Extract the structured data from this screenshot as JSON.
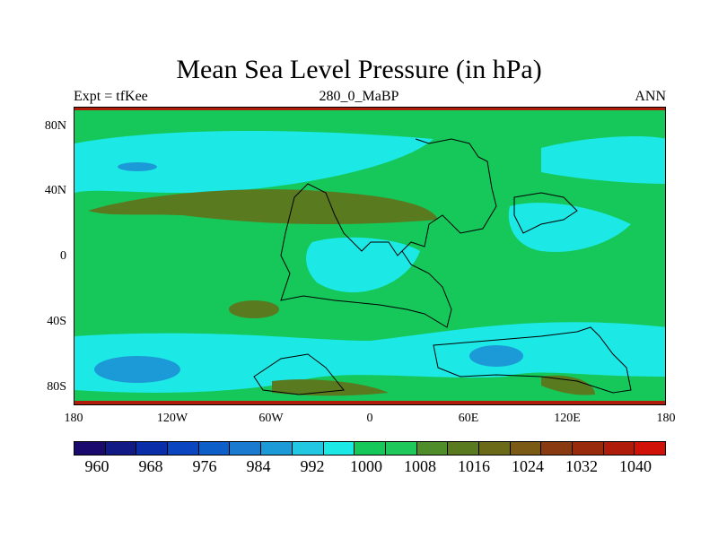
{
  "title": "Mean Sea Level Pressure (in hPa)",
  "left_label": "Expt = tfKee",
  "center_label": "280_0_MaBP",
  "right_label": "ANN",
  "y_ticks": [
    "80N",
    "40N",
    "0",
    "40S",
    "80S"
  ],
  "x_ticks": [
    "180",
    "120W",
    "60W",
    "0",
    "60E",
    "120E",
    "180"
  ],
  "colorbar": {
    "colors": [
      "#1b0a6e",
      "#121a86",
      "#0a2ea8",
      "#0b45c0",
      "#0f5fc8",
      "#1a7ad0",
      "#1c9ad8",
      "#22c7e2",
      "#1ce8e6",
      "#16c85a",
      "#1fc85a",
      "#4f8c2a",
      "#5a7a20",
      "#6a6a18",
      "#7a5a14",
      "#8a3a10",
      "#9a2a0c",
      "#b01c0a",
      "#d01208"
    ],
    "labels": [
      "960",
      "968",
      "976",
      "984",
      "992",
      "1000",
      "1008",
      "1016",
      "1024",
      "1032",
      "1040"
    ]
  }
}
